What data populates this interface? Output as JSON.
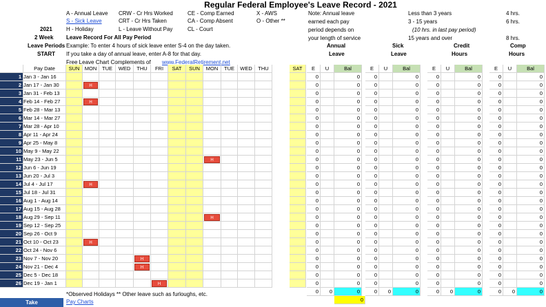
{
  "title": "Regular Federal Employee's Leave Record - 2021",
  "legend": {
    "col1": [
      "A - Annual Leave",
      "S - Sick Leave",
      "H - Holiday",
      "L   - Leave Without Pay"
    ],
    "col2": [
      "CRW - Cr Hrs Worked",
      "CRT - Cr Hrs Taken",
      "CL - Court"
    ],
    "col3": [
      "CE - Comp Earned",
      "CA - Comp Absent"
    ],
    "col4": [
      "X - AWS",
      "O - Other **"
    ]
  },
  "left_labels": [
    "2021",
    "2 Week",
    "Leave Periods",
    "START"
  ],
  "instructions": [
    "Leave Record For All Pay Period",
    "Example: To enter 4 hours of sick leave enter S-4 on the day taken.",
    "If you take a day of annual leave, enter A-8 for that day.",
    "Free Leave Chart Complements of"
  ],
  "website": "www.FederalRetirement.net",
  "note": {
    "lines": [
      "Note:  Annual leave",
      "earned each pay",
      "period depends on",
      "your length of service"
    ],
    "service": [
      "Less than 3 years",
      "3 - 15 years",
      "(10 hrs. in last pay period)",
      "15 years and over"
    ],
    "hours": [
      "4 hrs.",
      "6 hrs.",
      "8 hrs."
    ]
  },
  "group_headers": {
    "annual": [
      "Annual",
      "Leave"
    ],
    "sick": [
      "Sick",
      "Leave"
    ],
    "credit": [
      "Credit",
      "Hours"
    ],
    "comp": [
      "Comp",
      "Hours"
    ]
  },
  "columns": {
    "pay_date": "Pay Date",
    "days": [
      "SUN",
      "MON",
      "TUE",
      "WED",
      "THU",
      "FRI",
      "SAT",
      "SUN",
      "MON",
      "TUE",
      "WED",
      "THU",
      "SAT"
    ],
    "eub": [
      "E",
      "U",
      "Bal"
    ]
  },
  "rows": [
    {
      "n": "1",
      "date": "Jan 3 - Jan 16"
    },
    {
      "n": "2",
      "date": "Jan 17 - Jan 30"
    },
    {
      "n": "3",
      "date": "Jan 31 - Feb 13"
    },
    {
      "n": "4",
      "date": "Feb 14 - Feb 27"
    },
    {
      "n": "5",
      "date": "Feb  28 - Mar 13"
    },
    {
      "n": "6",
      "date": "Mar 14 - Mar 27"
    },
    {
      "n": "7",
      "date": "Mar 28 - Apr  10"
    },
    {
      "n": "8",
      "date": "Apr  11 - Apr 24"
    },
    {
      "n": "9",
      "date": "Apr 25 - May  8"
    },
    {
      "n": "10",
      "date": "May 9 - May 22"
    },
    {
      "n": "11",
      "date": "May 23 - Jun 5"
    },
    {
      "n": "12",
      "date": "Jun 6 - Jun 19"
    },
    {
      "n": "13",
      "date": "Jun 20 - Jul 3"
    },
    {
      "n": "14",
      "date": "Jul 4 - Jul 17"
    },
    {
      "n": "15",
      "date": "Jul 18 - Jul 31"
    },
    {
      "n": "16",
      "date": "Aug 1 - Aug 14"
    },
    {
      "n": "17",
      "date": "Aug 15 - Aug 28"
    },
    {
      "n": "18",
      "date": "Aug 29 - Sep  11"
    },
    {
      "n": "19",
      "date": "Sep  12 - Sep 25"
    },
    {
      "n": "20",
      "date": "Sep 26 - Oct  9"
    },
    {
      "n": "21",
      "date": "Oct  10 - Oct 23"
    },
    {
      "n": "22",
      "date": "Oct 24 - Nov  6"
    },
    {
      "n": "23",
      "date": "Nov  7 - Nov 20"
    },
    {
      "n": "24",
      "date": "Nov 21 - Dec  4"
    },
    {
      "n": "25",
      "date": "Dec 5 - Dec 18"
    },
    {
      "n": "26",
      "date": "Dec 19 - Jan  1"
    }
  ],
  "holidays": [
    {
      "row": 2,
      "day": 1
    },
    {
      "row": 4,
      "day": 1
    },
    {
      "row": 11,
      "day": 8
    },
    {
      "row": 14,
      "day": 1
    },
    {
      "row": 18,
      "day": 8
    },
    {
      "row": 21,
      "day": 1
    },
    {
      "row": 23,
      "day": 4
    },
    {
      "row": 24,
      "day": 4
    },
    {
      "row": 26,
      "day": 5
    }
  ],
  "holiday_mark": "H",
  "zero": "0",
  "footer_note": "*Observed Holidays  ** Other leave such as furloughs, etc.",
  "footer_link": "Pay Charts",
  "take_button": "Take",
  "colors": {
    "holiday": "#e74c3c",
    "weekend": "#ffff99",
    "rownum": "#1f3864",
    "bal": "#c6e0b4",
    "total": "#33ffff"
  }
}
